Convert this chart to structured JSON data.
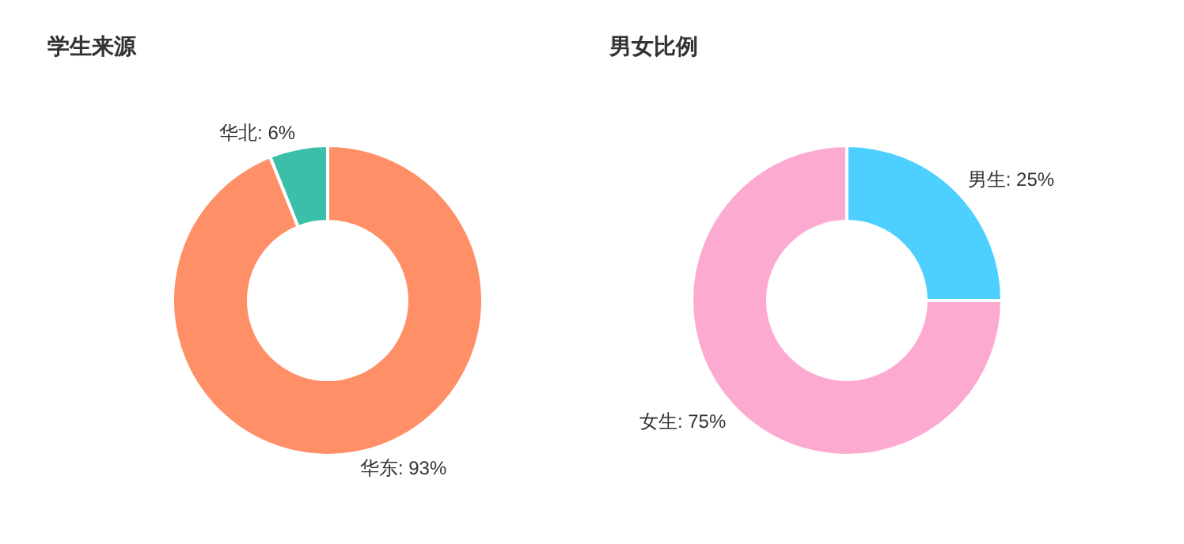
{
  "chart_data": [
    {
      "type": "donut",
      "title": "学生来源",
      "categories": [
        "华东",
        "华北"
      ],
      "values": [
        93,
        6
      ],
      "value_labels": [
        "93%",
        "6%"
      ],
      "colors": [
        "#ff8f66",
        "#3cbfa8"
      ]
    },
    {
      "type": "donut",
      "title": "男女比例",
      "categories": [
        "男生",
        "女生"
      ],
      "values": [
        25,
        75
      ],
      "value_labels": [
        "25%",
        "75%"
      ],
      "colors": [
        "#4dcfff",
        "#fdaad0"
      ]
    }
  ]
}
